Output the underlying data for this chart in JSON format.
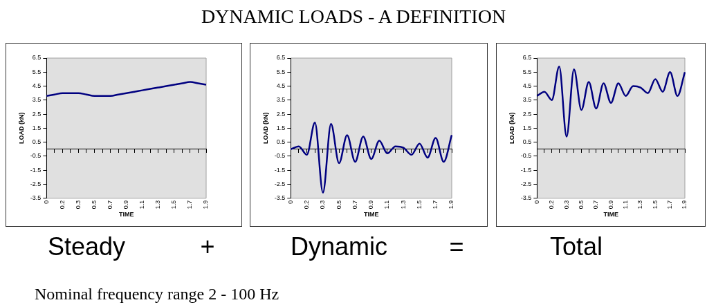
{
  "chart_data": [
    {
      "type": "line",
      "xlabel": "TIME",
      "ylabel": "LOAD (kN)",
      "categories": [
        "0",
        null,
        "0.2",
        null,
        "0.3",
        null,
        "0.5",
        null,
        "0.7",
        null,
        "0.9",
        null,
        "1.1",
        null,
        "1.3",
        null,
        "1.5",
        null,
        "1.7",
        null,
        "1.9"
      ],
      "values": [
        3.8,
        3.9,
        4.0,
        4.0,
        4.0,
        3.9,
        3.8,
        3.8,
        3.8,
        3.9,
        4.0,
        4.1,
        4.2,
        4.3,
        4.4,
        4.5,
        4.6,
        4.7,
        4.8,
        4.7,
        4.6
      ],
      "color": "#000080",
      "ylim": [
        -3.5,
        6.5
      ],
      "yticks": [
        -3.5,
        -2.5,
        -1.5,
        -0.5,
        0.5,
        1.5,
        2.5,
        3.5,
        4.5,
        5.5,
        6.5
      ]
    },
    {
      "type": "line",
      "xlabel": "TIME",
      "ylabel": "LOAD (kN)",
      "categories": [
        "0",
        null,
        "0.2",
        null,
        "0.3",
        null,
        "0.5",
        null,
        "0.7",
        null,
        "0.9",
        null,
        "1.1",
        null,
        "1.3",
        null,
        "1.5",
        null,
        "1.7",
        null,
        "1.9"
      ],
      "values": [
        0,
        0.2,
        -0.4,
        1.9,
        -3.1,
        1.8,
        -1.0,
        1.0,
        -0.9,
        0.9,
        -0.7,
        0.6,
        -0.3,
        0.2,
        0.1,
        -0.4,
        0.4,
        -0.6,
        0.8,
        -0.9,
        1.0
      ],
      "color": "#000080",
      "ylim": [
        -3.5,
        6.5
      ],
      "yticks": [
        -3.5,
        -2.5,
        -1.5,
        -0.5,
        0.5,
        1.5,
        2.5,
        3.5,
        4.5,
        5.5,
        6.5
      ]
    },
    {
      "type": "line",
      "xlabel": "TIME",
      "ylabel": "LOAD (kN)",
      "categories": [
        "0",
        null,
        "0.2",
        null,
        "0.3",
        null,
        "0.5",
        null,
        "0.7",
        null,
        "0.9",
        null,
        "1.1",
        null,
        "1.3",
        null,
        "1.5",
        null,
        "1.7",
        null,
        "1.9"
      ],
      "values": [
        3.8,
        4.1,
        3.5,
        5.9,
        0.9,
        5.7,
        2.8,
        4.8,
        2.9,
        4.7,
        3.3,
        4.7,
        3.8,
        4.5,
        4.4,
        4.0,
        5.0,
        4.1,
        5.5,
        3.8,
        5.5
      ],
      "color": "#000080",
      "ylim": [
        -3.5,
        6.5
      ],
      "yticks": [
        -3.5,
        -2.5,
        -1.5,
        -0.5,
        0.5,
        1.5,
        2.5,
        3.5,
        4.5,
        5.5,
        6.5
      ]
    },
    {
      "type": "other",
      "title": "DYNAMIC LOADS - A DEFINITION",
      "annotations": [
        "Steady",
        "+",
        "Dynamic",
        "=",
        "Total",
        "Nominal frequency range 2 - 100 Hz"
      ]
    }
  ]
}
